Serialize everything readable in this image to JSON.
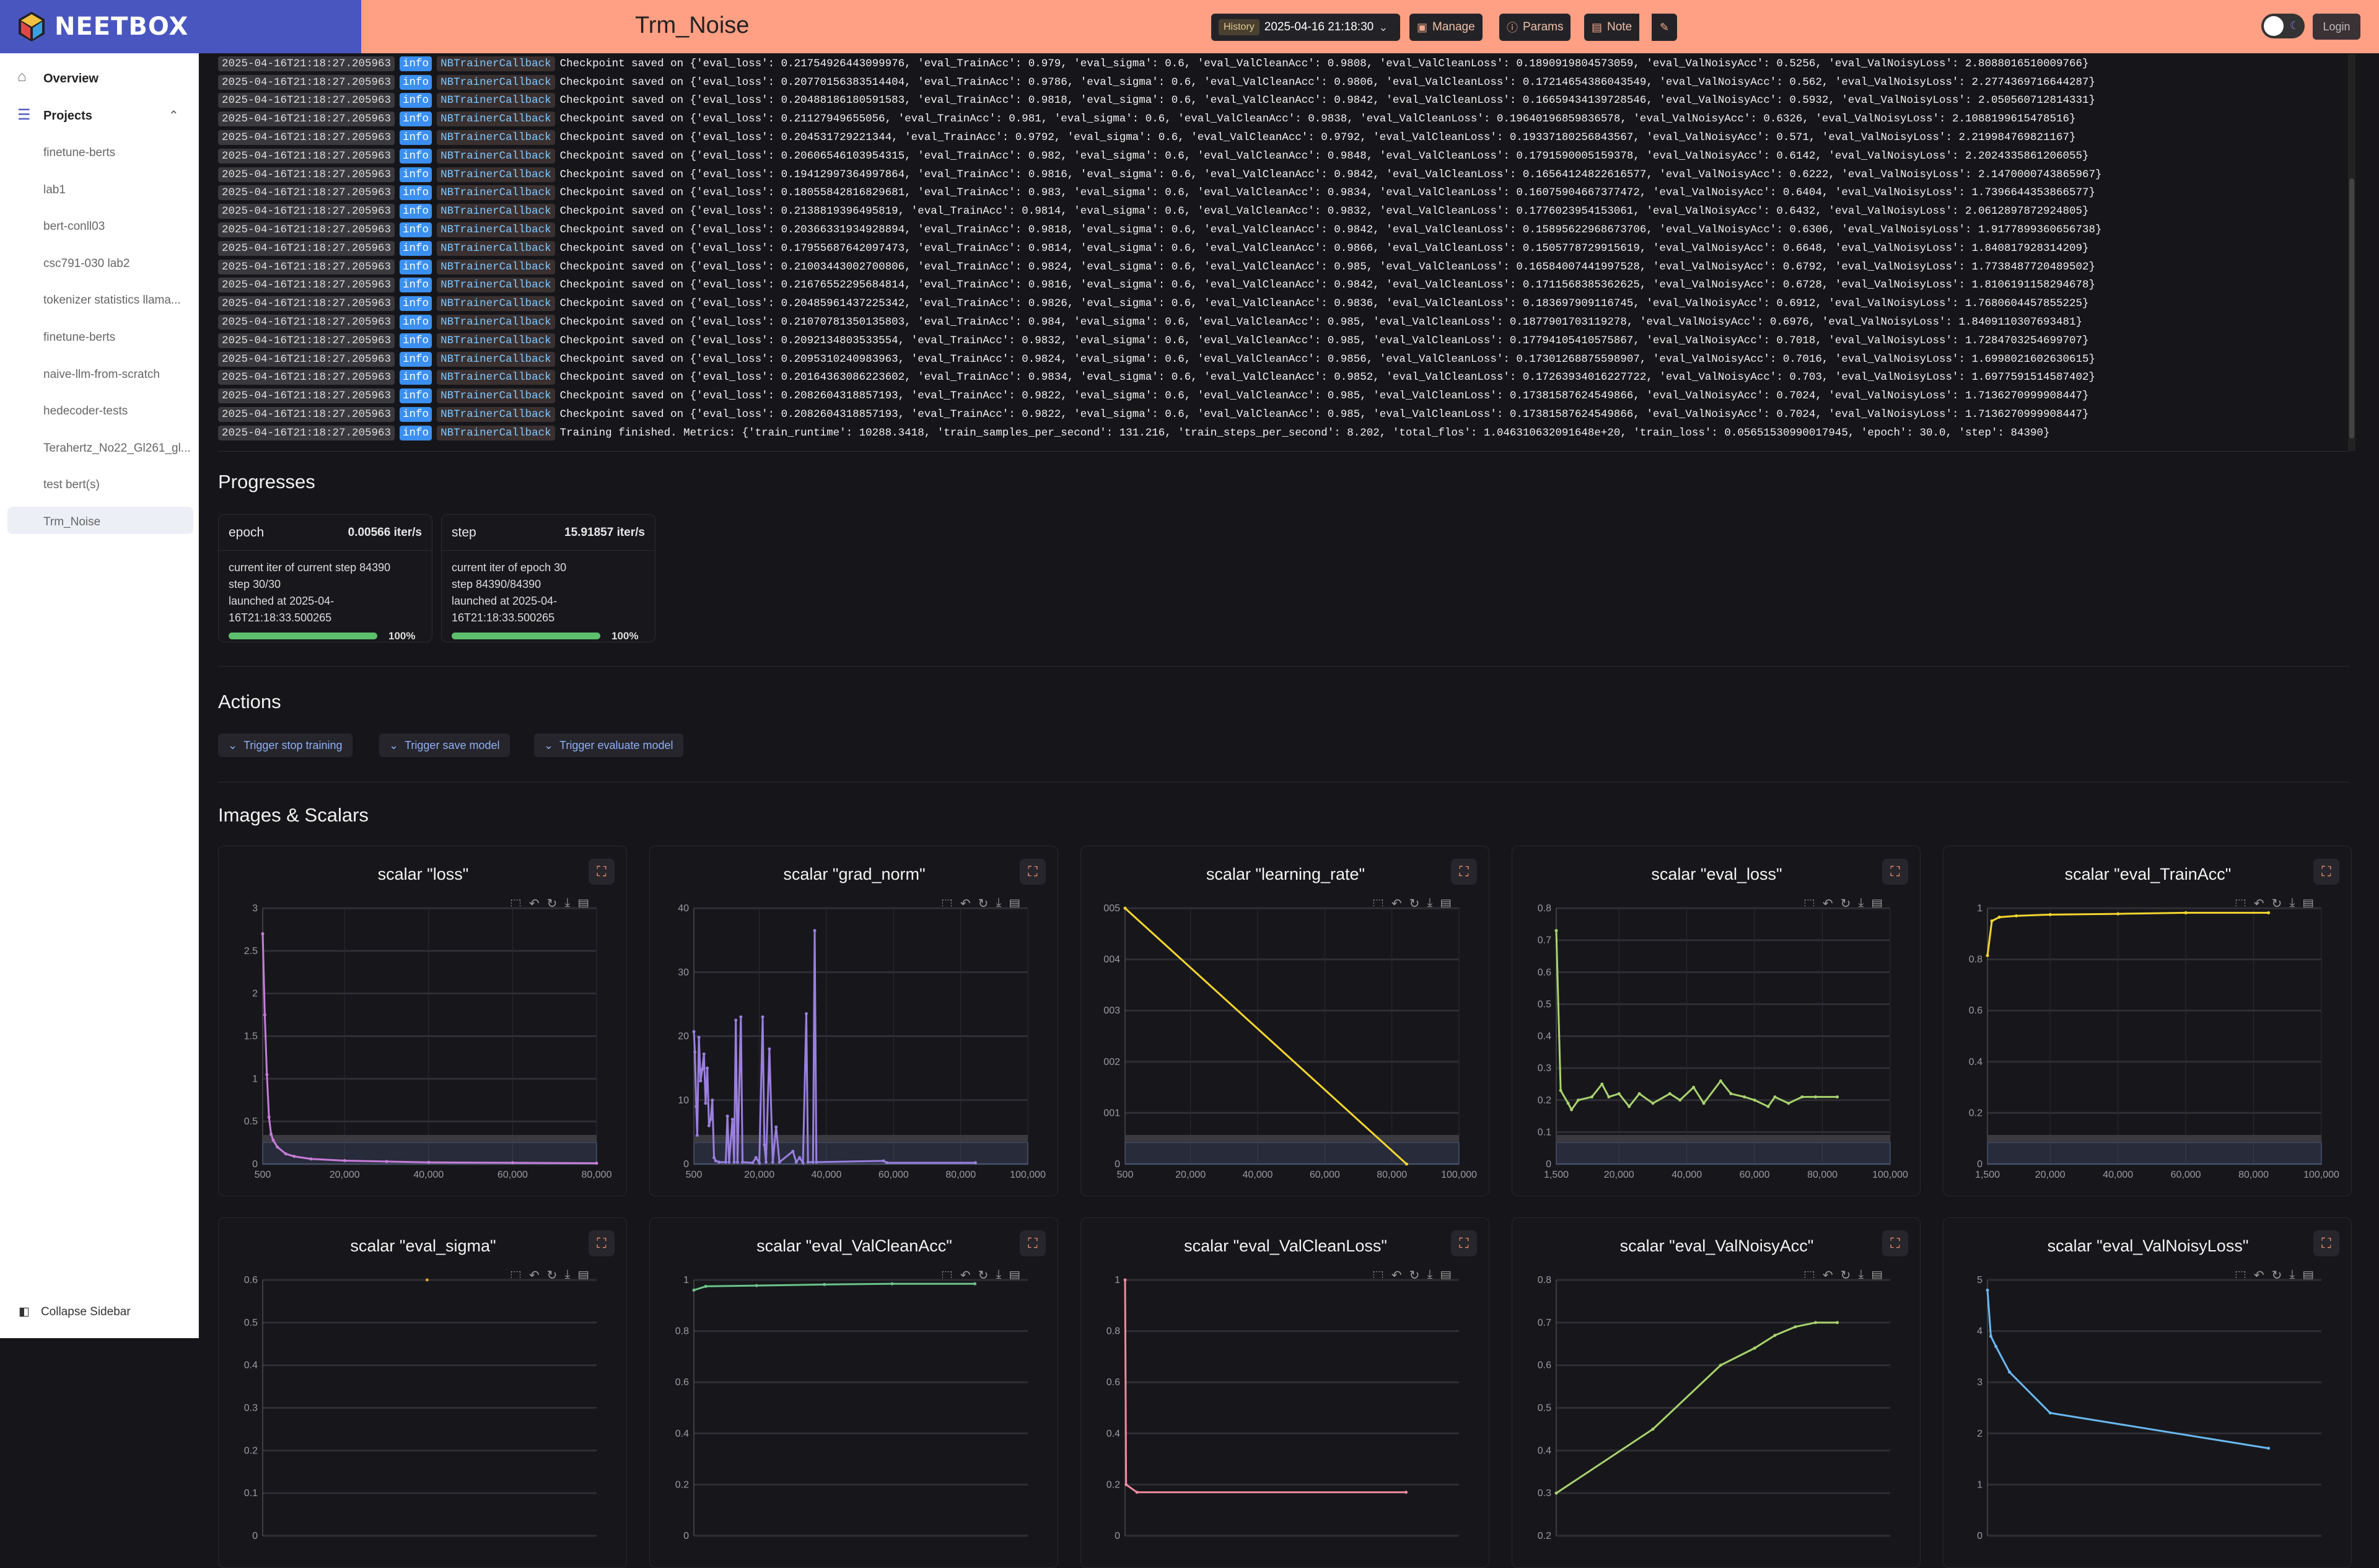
{
  "header": {
    "brand": "NEETBOX",
    "title": "Trm_Noise",
    "history_label": "History",
    "history_value": "2025-04-16 21:18:30",
    "manage": "Manage",
    "params": "Params",
    "note": "Note",
    "login": "Login"
  },
  "sidebar": {
    "overview": "Overview",
    "projects": "Projects",
    "items": [
      "finetune-berts",
      "lab1",
      "bert-conll03",
      "csc791-030 lab2",
      "tokenizer statistics llama...",
      "finetune-berts",
      "naive-llm-from-scratch",
      "hedecoder-tests",
      "Terahertz_No22_Gl261_gl...",
      "test bert(s)",
      "Trm_Noise"
    ],
    "selected": "Trm_Noise",
    "collapse": "Collapse Sidebar"
  },
  "logs": [
    {
      "time": "2025-04-16T21:18:27.205963",
      "level": "info",
      "source": "NBTrainerCallback",
      "message": "Checkpoint saved on {'eval_loss': 0.21754926443099976, 'eval_TrainAcc': 0.979, 'eval_sigma': 0.6, 'eval_ValCleanAcc': 0.9808, 'eval_ValCleanLoss': 0.1890919804573059, 'eval_ValNoisyAcc': 0.5256, 'eval_ValNoisyLoss': 2.8088016510009766}"
    },
    {
      "time": "2025-04-16T21:18:27.205963",
      "level": "info",
      "source": "NBTrainerCallback",
      "message": "Checkpoint saved on {'eval_loss': 0.20770156383514404, 'eval_TrainAcc': 0.9786, 'eval_sigma': 0.6, 'eval_ValCleanAcc': 0.9806, 'eval_ValCleanLoss': 0.17214654386043549, 'eval_ValNoisyAcc': 0.562, 'eval_ValNoisyLoss': 2.2774369716644287}"
    },
    {
      "time": "2025-04-16T21:18:27.205963",
      "level": "info",
      "source": "NBTrainerCallback",
      "message": "Checkpoint saved on {'eval_loss': 0.20488186180591583, 'eval_TrainAcc': 0.9818, 'eval_sigma': 0.6, 'eval_ValCleanAcc': 0.9842, 'eval_ValCleanLoss': 0.16659434139728546, 'eval_ValNoisyAcc': 0.5932, 'eval_ValNoisyLoss': 2.050560712814331}"
    },
    {
      "time": "2025-04-16T21:18:27.205963",
      "level": "info",
      "source": "NBTrainerCallback",
      "message": "Checkpoint saved on {'eval_loss': 0.21127949655056, 'eval_TrainAcc': 0.981, 'eval_sigma': 0.6, 'eval_ValCleanAcc': 0.9838, 'eval_ValCleanLoss': 0.19640196859836578, 'eval_ValNoisyAcc': 0.6326, 'eval_ValNoisyLoss': 2.1088199615478516}"
    },
    {
      "time": "2025-04-16T21:18:27.205963",
      "level": "info",
      "source": "NBTrainerCallback",
      "message": "Checkpoint saved on {'eval_loss': 0.204531729221344, 'eval_TrainAcc': 0.9792, 'eval_sigma': 0.6, 'eval_ValCleanAcc': 0.9792, 'eval_ValCleanLoss': 0.19337180256843567, 'eval_ValNoisyAcc': 0.571, 'eval_ValNoisyLoss': 2.219984769821167}"
    },
    {
      "time": "2025-04-16T21:18:27.205963",
      "level": "info",
      "source": "NBTrainerCallback",
      "message": "Checkpoint saved on {'eval_loss': 0.20606546103954315, 'eval_TrainAcc': 0.982, 'eval_sigma': 0.6, 'eval_ValCleanAcc': 0.9848, 'eval_ValCleanLoss': 0.1791590005159378, 'eval_ValNoisyAcc': 0.6142, 'eval_ValNoisyLoss': 2.2024335861206055}"
    },
    {
      "time": "2025-04-16T21:18:27.205963",
      "level": "info",
      "source": "NBTrainerCallback",
      "message": "Checkpoint saved on {'eval_loss': 0.19412997364997864, 'eval_TrainAcc': 0.9816, 'eval_sigma': 0.6, 'eval_ValCleanAcc': 0.9842, 'eval_ValCleanLoss': 0.16564124822616577, 'eval_ValNoisyAcc': 0.6222, 'eval_ValNoisyLoss': 2.1470000743865967}"
    },
    {
      "time": "2025-04-16T21:18:27.205963",
      "level": "info",
      "source": "NBTrainerCallback",
      "message": "Checkpoint saved on {'eval_loss': 0.18055842816829681, 'eval_TrainAcc': 0.983, 'eval_sigma': 0.6, 'eval_ValCleanAcc': 0.9834, 'eval_ValCleanLoss': 0.16075904667377472, 'eval_ValNoisyAcc': 0.6404, 'eval_ValNoisyLoss': 1.7396644353866577}"
    },
    {
      "time": "2025-04-16T21:18:27.205963",
      "level": "info",
      "source": "NBTrainerCallback",
      "message": "Checkpoint saved on {'eval_loss': 0.2138819396495819, 'eval_TrainAcc': 0.9814, 'eval_sigma': 0.6, 'eval_ValCleanAcc': 0.9832, 'eval_ValCleanLoss': 0.1776023954153061, 'eval_ValNoisyAcc': 0.6432, 'eval_ValNoisyLoss': 2.0612897872924805}"
    },
    {
      "time": "2025-04-16T21:18:27.205963",
      "level": "info",
      "source": "NBTrainerCallback",
      "message": "Checkpoint saved on {'eval_loss': 0.20366331934928894, 'eval_TrainAcc': 0.9818, 'eval_sigma': 0.6, 'eval_ValCleanAcc': 0.9842, 'eval_ValCleanLoss': 0.15895622968673706, 'eval_ValNoisyAcc': 0.6306, 'eval_ValNoisyLoss': 1.9177899360656738}"
    },
    {
      "time": "2025-04-16T21:18:27.205963",
      "level": "info",
      "source": "NBTrainerCallback",
      "message": "Checkpoint saved on {'eval_loss': 0.17955687642097473, 'eval_TrainAcc': 0.9814, 'eval_sigma': 0.6, 'eval_ValCleanAcc': 0.9866, 'eval_ValCleanLoss': 0.1505778729915619, 'eval_ValNoisyAcc': 0.6648, 'eval_ValNoisyLoss': 1.840817928314209}"
    },
    {
      "time": "2025-04-16T21:18:27.205963",
      "level": "info",
      "source": "NBTrainerCallback",
      "message": "Checkpoint saved on {'eval_loss': 0.21003443002700806, 'eval_TrainAcc': 0.9824, 'eval_sigma': 0.6, 'eval_ValCleanAcc': 0.985, 'eval_ValCleanLoss': 0.16584007441997528, 'eval_ValNoisyAcc': 0.6792, 'eval_ValNoisyLoss': 1.7738487720489502}"
    },
    {
      "time": "2025-04-16T21:18:27.205963",
      "level": "info",
      "source": "NBTrainerCallback",
      "message": "Checkpoint saved on {'eval_loss': 0.21676552295684814, 'eval_TrainAcc': 0.9816, 'eval_sigma': 0.6, 'eval_ValCleanAcc': 0.9842, 'eval_ValCleanLoss': 0.1711568385362625, 'eval_ValNoisyAcc': 0.6728, 'eval_ValNoisyLoss': 1.8106191158294678}"
    },
    {
      "time": "2025-04-16T21:18:27.205963",
      "level": "info",
      "source": "NBTrainerCallback",
      "message": "Checkpoint saved on {'eval_loss': 0.20485961437225342, 'eval_TrainAcc': 0.9826, 'eval_sigma': 0.6, 'eval_ValCleanAcc': 0.9836, 'eval_ValCleanLoss': 0.183697909116745, 'eval_ValNoisyAcc': 0.6912, 'eval_ValNoisyLoss': 1.7680604457855225}"
    },
    {
      "time": "2025-04-16T21:18:27.205963",
      "level": "info",
      "source": "NBTrainerCallback",
      "message": "Checkpoint saved on {'eval_loss': 0.21070781350135803, 'eval_TrainAcc': 0.984, 'eval_sigma': 0.6, 'eval_ValCleanAcc': 0.985, 'eval_ValCleanLoss': 0.1877901703119278, 'eval_ValNoisyAcc': 0.6976, 'eval_ValNoisyLoss': 1.8409110307693481}"
    },
    {
      "time": "2025-04-16T21:18:27.205963",
      "level": "info",
      "source": "NBTrainerCallback",
      "message": "Checkpoint saved on {'eval_loss': 0.2092134803533554, 'eval_TrainAcc': 0.9832, 'eval_sigma': 0.6, 'eval_ValCleanAcc': 0.985, 'eval_ValCleanLoss': 0.17794105410575867, 'eval_ValNoisyAcc': 0.7018, 'eval_ValNoisyLoss': 1.7284703254699707}"
    },
    {
      "time": "2025-04-16T21:18:27.205963",
      "level": "info",
      "source": "NBTrainerCallback",
      "message": "Checkpoint saved on {'eval_loss': 0.2095310240983963, 'eval_TrainAcc': 0.9824, 'eval_sigma': 0.6, 'eval_ValCleanAcc': 0.9856, 'eval_ValCleanLoss': 0.17301268875598907, 'eval_ValNoisyAcc': 0.7016, 'eval_ValNoisyLoss': 1.6998021602630615}"
    },
    {
      "time": "2025-04-16T21:18:27.205963",
      "level": "info",
      "source": "NBTrainerCallback",
      "message": "Checkpoint saved on {'eval_loss': 0.20164363086223602, 'eval_TrainAcc': 0.9834, 'eval_sigma': 0.6, 'eval_ValCleanAcc': 0.9852, 'eval_ValCleanLoss': 0.17263934016227722, 'eval_ValNoisyAcc': 0.703, 'eval_ValNoisyLoss': 1.6977591514587402}"
    },
    {
      "time": "2025-04-16T21:18:27.205963",
      "level": "info",
      "source": "NBTrainerCallback",
      "message": "Checkpoint saved on {'eval_loss': 0.2082604318857193, 'eval_TrainAcc': 0.9822, 'eval_sigma': 0.6, 'eval_ValCleanAcc': 0.985, 'eval_ValCleanLoss': 0.17381587624549866, 'eval_ValNoisyAcc': 0.7024, 'eval_ValNoisyLoss': 1.7136270999908447}"
    },
    {
      "time": "2025-04-16T21:18:27.205963",
      "level": "info",
      "source": "NBTrainerCallback",
      "message": "Checkpoint saved on {'eval_loss': 0.2082604318857193, 'eval_TrainAcc': 0.9822, 'eval_sigma': 0.6, 'eval_ValCleanAcc': 0.985, 'eval_ValCleanLoss': 0.17381587624549866, 'eval_ValNoisyAcc': 0.7024, 'eval_ValNoisyLoss': 1.7136270999908447}"
    },
    {
      "time": "2025-04-16T21:18:27.205963",
      "level": "info",
      "source": "NBTrainerCallback",
      "message": "Training finished. Metrics: {'train_runtime': 10288.3418, 'train_samples_per_second': 131.216, 'train_steps_per_second': 8.202, 'total_flos': 1.046310632091648e+20, 'train_loss': 0.05651530990017945, 'epoch': 30.0, 'step': 84390}"
    }
  ],
  "progresses": {
    "heading": "Progresses",
    "cards": [
      {
        "name": "epoch",
        "rate": "0.00566 iter/s",
        "line1": "current iter of current step 84390",
        "line2": "step 30/30",
        "line3": "launched at 2025-04-",
        "line4": "16T21:18:33.500265",
        "fraction": 1.0,
        "percent": "100%"
      },
      {
        "name": "step",
        "rate": "15.91857 iter/s",
        "line1": "current iter of epoch 30",
        "line2": "step 84390/84390",
        "line3": "launched at 2025-04-",
        "line4": "16T21:18:33.500265",
        "fraction": 1.0,
        "percent": "100%"
      }
    ]
  },
  "actions": {
    "heading": "Actions",
    "buttons": [
      "Trigger stop training",
      "Trigger save model",
      "Trigger evaluate model"
    ]
  },
  "images_scalars": {
    "heading": "Images & Scalars"
  },
  "colors": {
    "header": "#ff9f84",
    "brand": "#4a56c0",
    "info": "#3b8ff0",
    "progress": "#5cc06c"
  },
  "chart_data": [
    {
      "type": "line",
      "title": "scalar \"loss\"",
      "color": "#c77dd8",
      "ylim": [
        0,
        3
      ],
      "yticks": [
        "0",
        "0.5",
        "1",
        "1.5",
        "2",
        "2.5",
        "3"
      ],
      "xlim": [
        500,
        80000
      ],
      "xticks": [
        "500",
        "20,000",
        "40,000",
        "60,000",
        "80,000"
      ],
      "xtick_values": [
        500,
        20000,
        40000,
        60000,
        80000
      ],
      "x": [
        500,
        1000,
        1500,
        2000,
        2500,
        3000,
        4000,
        6000,
        8000,
        12000,
        20000,
        30000,
        40000,
        60000,
        80000
      ],
      "y": [
        2.7,
        1.75,
        1.05,
        0.55,
        0.35,
        0.28,
        0.2,
        0.12,
        0.09,
        0.06,
        0.04,
        0.03,
        0.02,
        0.015,
        0.01
      ]
    },
    {
      "type": "line",
      "title": "scalar \"grad_norm\"",
      "color": "#9a7fe0",
      "ylim": [
        0,
        40
      ],
      "yticks": [
        "0",
        "10",
        "20",
        "30",
        "40"
      ],
      "xlim": [
        500,
        100000
      ],
      "xticks": [
        "500",
        "20,000",
        "40,000",
        "60,000",
        "80,000",
        "100,000"
      ],
      "xtick_values": [
        500,
        20000,
        40000,
        60000,
        80000,
        100000
      ],
      "x": [
        500,
        800,
        1200,
        1500,
        2000,
        2500,
        3000,
        3500,
        4000,
        4500,
        5000,
        5500,
        6000,
        6500,
        7000,
        8000,
        10000,
        10500,
        11000,
        12000,
        12500,
        13000,
        13500,
        14500,
        15000,
        18000,
        19000,
        20000,
        21000,
        21500,
        22000,
        23000,
        24000,
        25000,
        26000,
        30000,
        31000,
        32000,
        33000,
        34000,
        34500,
        36000,
        36500,
        37000,
        57000,
        58000,
        84390
      ],
      "y": [
        20.7,
        17.5,
        9,
        4.5,
        19.8,
        13,
        14.8,
        17.2,
        9.5,
        15,
        6,
        7,
        10,
        1,
        0.5,
        0.3,
        0.3,
        7.5,
        0.3,
        7,
        0.3,
        22.5,
        0.3,
        23,
        0.3,
        0.2,
        1,
        0.2,
        23,
        3,
        0.3,
        18,
        0.3,
        5.8,
        0.3,
        2,
        0.3,
        1,
        0.2,
        23.5,
        0.3,
        0.3,
        36.5,
        0.3,
        0.5,
        0.2,
        0.2
      ]
    },
    {
      "type": "line",
      "title": "scalar \"learning_rate\"",
      "color": "#f5d630",
      "ylim": [
        0,
        0.005
      ],
      "yticks": [
        "0",
        "001",
        "002",
        "003",
        "004",
        "005"
      ],
      "xlim": [
        500,
        100000
      ],
      "xticks": [
        "500",
        "20,000",
        "40,000",
        "60,000",
        "80,000",
        "100,000"
      ],
      "xtick_values": [
        500,
        20000,
        40000,
        60000,
        80000,
        100000
      ],
      "x": [
        500,
        84390
      ],
      "y": [
        0.005,
        0
      ]
    },
    {
      "type": "line",
      "title": "scalar \"eval_loss\"",
      "color": "#a9d36e",
      "ylim": [
        0,
        0.8
      ],
      "yticks": [
        "0",
        "0.1",
        "0.2",
        "0.3",
        "0.4",
        "0.5",
        "0.6",
        "0.7",
        "0.8"
      ],
      "xlim": [
        1500,
        100000
      ],
      "xticks": [
        "1,500",
        "20,000",
        "40,000",
        "60,000",
        "80,000",
        "100,000"
      ],
      "xtick_values": [
        1500,
        20000,
        40000,
        60000,
        80000,
        100000
      ],
      "x": [
        1500,
        2800,
        5000,
        6000,
        8000,
        12000,
        15000,
        17000,
        20000,
        23000,
        26000,
        30000,
        35000,
        38000,
        42000,
        45000,
        50000,
        53000,
        57000,
        60000,
        64000,
        66000,
        70000,
        74000,
        78000,
        84390
      ],
      "y": [
        0.73,
        0.23,
        0.19,
        0.17,
        0.2,
        0.21,
        0.25,
        0.21,
        0.22,
        0.18,
        0.22,
        0.19,
        0.22,
        0.2,
        0.24,
        0.19,
        0.26,
        0.22,
        0.21,
        0.2,
        0.18,
        0.21,
        0.19,
        0.21,
        0.21,
        0.21
      ]
    },
    {
      "type": "line",
      "title": "scalar \"eval_TrainAcc\"",
      "color": "#f5d630",
      "ylim": [
        0,
        1
      ],
      "yticks": [
        "0",
        "0.2",
        "0.4",
        "0.6",
        "0.8",
        "1"
      ],
      "xlim": [
        1500,
        100000
      ],
      "xticks": [
        "1,500",
        "20,000",
        "40,000",
        "60,000",
        "80,000",
        "100,000"
      ],
      "xtick_values": [
        1500,
        20000,
        40000,
        60000,
        80000,
        100000
      ],
      "x": [
        1500,
        2800,
        5000,
        10000,
        20000,
        40000,
        60000,
        84390
      ],
      "y": [
        0.815,
        0.95,
        0.965,
        0.97,
        0.975,
        0.978,
        0.982,
        0.982
      ]
    },
    {
      "type": "line",
      "title": "scalar \"eval_sigma\"",
      "color": "#e0a030",
      "ylim": [
        0,
        0.6
      ],
      "yticks": [
        "0",
        "0.1",
        "0.2",
        "0.3",
        "0.4",
        "0.5",
        "0.6"
      ],
      "xlim": [
        1500,
        100000
      ],
      "xticks": [],
      "xtick_values": [],
      "x": [
        50000
      ],
      "y": [
        0.6
      ]
    },
    {
      "type": "line",
      "title": "scalar \"eval_ValCleanAcc\"",
      "color": "#6cc48a",
      "ylim": [
        0,
        1
      ],
      "yticks": [
        "0",
        "0.2",
        "0.4",
        "0.6",
        "0.8",
        "1"
      ],
      "xlim": [
        1500,
        100000
      ],
      "xticks": [],
      "xtick_values": [],
      "x": [
        1500,
        5000,
        20000,
        40000,
        60000,
        84390
      ],
      "y": [
        0.96,
        0.975,
        0.978,
        0.982,
        0.985,
        0.985
      ]
    },
    {
      "type": "line",
      "title": "scalar \"eval_ValCleanLoss\"",
      "color": "#f08aa0",
      "ylim": [
        0,
        1
      ],
      "yticks": [
        "0",
        "0.2",
        "0.4",
        "0.6",
        "0.8",
        "1"
      ],
      "xlim": [
        1500,
        100000
      ],
      "xticks": [],
      "xtick_values": [],
      "x": [
        1500,
        1800,
        5000,
        84390
      ],
      "y": [
        1.0,
        0.2,
        0.17,
        0.17
      ]
    },
    {
      "type": "line",
      "title": "scalar \"eval_ValNoisyAcc\"",
      "color": "#a9d36e",
      "ylim": [
        0.2,
        0.8
      ],
      "yticks": [
        "0.2",
        "0.3",
        "0.4",
        "0.5",
        "0.6",
        "0.7",
        "0.8"
      ],
      "xlim": [
        1500,
        100000
      ],
      "xticks": [],
      "xtick_values": [],
      "x": [
        1500,
        30000,
        50000,
        60000,
        66000,
        72000,
        78000,
        84390
      ],
      "y": [
        0.3,
        0.45,
        0.6,
        0.64,
        0.67,
        0.69,
        0.7,
        0.7
      ]
    },
    {
      "type": "line",
      "title": "scalar \"eval_ValNoisyLoss\"",
      "color": "#6ab8f0",
      "ylim": [
        0,
        5
      ],
      "yticks": [
        "0",
        "1",
        "2",
        "3",
        "4",
        "5"
      ],
      "xlim": [
        1500,
        100000
      ],
      "xticks": [],
      "xtick_values": [],
      "x": [
        1500,
        2500,
        4000,
        8000,
        20000,
        84390
      ],
      "y": [
        4.8,
        3.9,
        3.7,
        3.2,
        2.4,
        1.71
      ]
    }
  ]
}
